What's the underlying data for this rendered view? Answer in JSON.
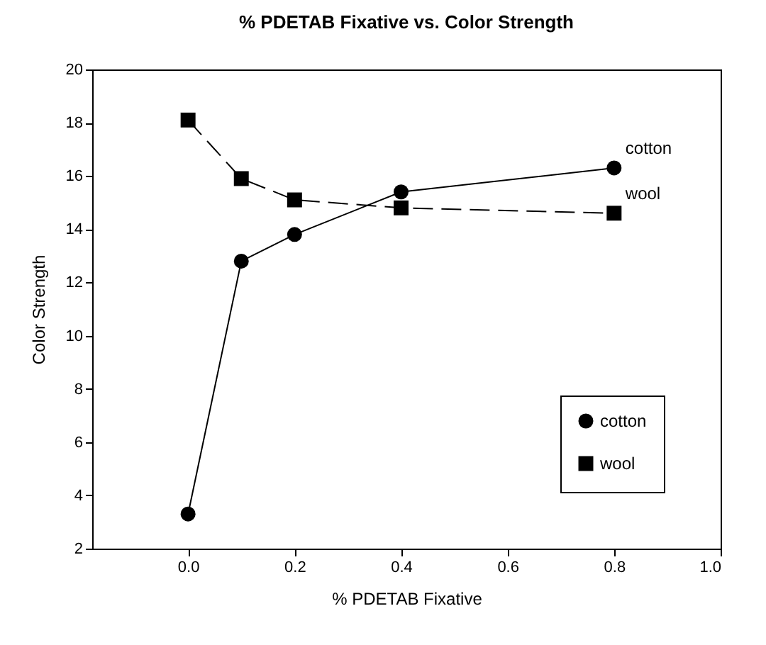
{
  "chart_data": {
    "type": "line",
    "title": "% PDETAB Fixative vs. Color Strength",
    "xlabel": "% PDETAB Fixative",
    "ylabel": "Color Strength",
    "x": [
      0.0,
      0.1,
      0.2,
      0.4,
      0.8
    ],
    "series": [
      {
        "name": "cotton",
        "color": "#000000",
        "values": [
          3.3,
          12.8,
          13.8,
          15.4,
          16.3
        ],
        "marker": "circle",
        "line_style": "solid"
      },
      {
        "name": "wool",
        "color": "#000000",
        "values": [
          18.1,
          15.9,
          15.1,
          14.8,
          14.6
        ],
        "marker": "square",
        "line_style": "dashed"
      }
    ],
    "xlim": [
      -0.18,
      1.0
    ],
    "xticks": [
      {
        "value": 0.0,
        "label": "0.0"
      },
      {
        "value": 0.2,
        "label": "0.2"
      },
      {
        "value": 0.4,
        "label": "0.4"
      },
      {
        "value": 0.6,
        "label": "0.6"
      },
      {
        "value": 0.8,
        "label": "0.8"
      },
      {
        "value": 1.0,
        "label": "1.0"
      }
    ],
    "ylim": [
      2,
      20
    ],
    "yticks": [
      2,
      4,
      6,
      8,
      10,
      12,
      14,
      16,
      18,
      20
    ],
    "annotations": [
      {
        "text": "cotton",
        "x": 0.8,
        "y": 16.3
      },
      {
        "text": "wool",
        "x": 0.8,
        "y": 14.6
      }
    ],
    "grid": false,
    "legend": "bottom right"
  }
}
